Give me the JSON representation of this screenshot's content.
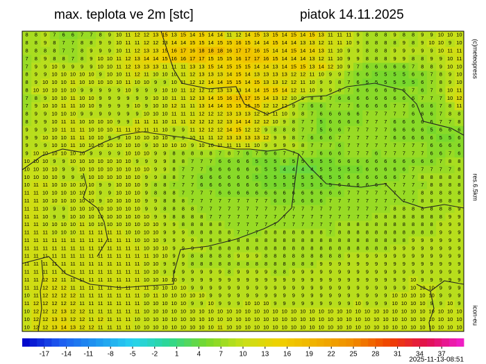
{
  "header": {
    "title": "max. teplota ve 2m [stc]",
    "date": "piatok 14.11.2025"
  },
  "side_labels": {
    "credit": "(c)meteopress",
    "resolution": "res.6.5km",
    "model": "icon-eu"
  },
  "timestamp": "2025-11-13-08:51",
  "grid": [
    [
      8,
      8,
      9,
      7,
      6,
      6,
      7,
      7,
      8,
      9,
      10,
      11,
      12,
      12,
      13,
      15,
      13,
      15,
      14,
      15,
      14,
      14,
      11,
      12,
      14,
      15,
      13,
      15,
      14,
      15,
      14,
      15,
      13,
      11,
      11,
      11,
      9,
      8,
      8,
      8,
      9,
      8,
      8,
      9,
      9,
      10,
      10,
      10
    ],
    [
      8,
      8,
      9,
      8,
      7,
      7,
      8,
      8,
      9,
      9,
      10,
      11,
      11,
      12,
      12,
      13,
      14,
      14,
      15,
      15,
      14,
      15,
      15,
      16,
      15,
      14,
      14,
      15,
      14,
      14,
      13,
      13,
      12,
      11,
      11,
      10,
      9,
      8,
      8,
      8,
      8,
      9,
      8,
      9,
      10,
      10,
      9,
      10
    ],
    [
      8,
      8,
      8,
      8,
      7,
      7,
      8,
      9,
      9,
      9,
      10,
      11,
      12,
      13,
      13,
      15,
      16,
      17,
      16,
      18,
      18,
      18,
      16,
      17,
      17,
      16,
      15,
      14,
      14,
      15,
      14,
      14,
      13,
      11,
      10,
      9,
      9,
      8,
      8,
      8,
      9,
      9,
      9,
      9,
      9,
      10,
      11,
      11
    ],
    [
      7,
      8,
      9,
      8,
      8,
      7,
      8,
      9,
      10,
      10,
      11,
      12,
      13,
      14,
      14,
      15,
      16,
      16,
      17,
      17,
      15,
      15,
      15,
      16,
      17,
      17,
      16,
      15,
      14,
      14,
      14,
      13,
      12,
      11,
      10,
      9,
      9,
      8,
      8,
      8,
      9,
      9,
      8,
      8,
      9,
      9,
      10,
      11
    ],
    [
      7,
      9,
      9,
      10,
      9,
      9,
      9,
      9,
      10,
      10,
      11,
      12,
      13,
      13,
      13,
      11,
      11,
      11,
      13,
      13,
      15,
      14,
      15,
      15,
      15,
      14,
      14,
      13,
      14,
      15,
      15,
      13,
      14,
      12,
      10,
      9,
      7,
      6,
      6,
      6,
      6,
      6,
      7,
      8,
      8,
      9,
      10,
      10
    ],
    [
      8,
      9,
      9,
      10,
      10,
      10,
      10,
      10,
      9,
      10,
      10,
      11,
      12,
      11,
      10,
      10,
      10,
      11,
      12,
      13,
      13,
      13,
      14,
      15,
      14,
      13,
      13,
      13,
      13,
      12,
      12,
      11,
      10,
      9,
      9,
      7,
      6,
      6,
      5,
      5,
      5,
      5,
      6,
      6,
      7,
      8,
      9,
      10
    ],
    [
      8,
      9,
      10,
      10,
      10,
      11,
      10,
      10,
      10,
      10,
      10,
      11,
      10,
      10,
      9,
      9,
      10,
      11,
      12,
      12,
      14,
      14,
      15,
      15,
      14,
      15,
      13,
      13,
      12,
      12,
      11,
      10,
      9,
      9,
      8,
      7,
      6,
      5,
      5,
      5,
      5,
      5,
      5,
      6,
      7,
      8,
      9,
      10
    ],
    [
      8,
      10,
      10,
      10,
      10,
      10,
      9,
      9,
      9,
      9,
      9,
      10,
      9,
      9,
      9,
      10,
      10,
      11,
      12,
      12,
      12,
      13,
      13,
      13,
      14,
      14,
      15,
      15,
      14,
      12,
      11,
      10,
      9,
      9,
      8,
      7,
      6,
      6,
      6,
      6,
      6,
      6,
      7,
      6,
      7,
      8,
      10,
      11
    ],
    [
      7,
      8,
      9,
      10,
      10,
      11,
      10,
      10,
      9,
      9,
      9,
      9,
      9,
      9,
      10,
      10,
      11,
      11,
      12,
      13,
      14,
      15,
      16,
      17,
      17,
      15,
      14,
      13,
      12,
      10,
      9,
      8,
      8,
      7,
      6,
      6,
      6,
      6,
      6,
      6,
      6,
      6,
      6,
      7,
      7,
      7,
      10,
      12
    ],
    [
      7,
      9,
      10,
      10,
      11,
      11,
      10,
      10,
      9,
      9,
      9,
      9,
      10,
      9,
      10,
      10,
      12,
      11,
      11,
      13,
      14,
      14,
      15,
      15,
      15,
      15,
      12,
      12,
      12,
      9,
      7,
      6,
      6,
      7,
      7,
      7,
      6,
      6,
      6,
      6,
      7,
      7,
      6,
      6,
      6,
      7,
      8,
      11
    ],
    [
      8,
      9,
      9,
      10,
      10,
      10,
      9,
      9,
      9,
      9,
      9,
      9,
      9,
      10,
      10,
      10,
      11,
      11,
      11,
      12,
      12,
      12,
      13,
      13,
      13,
      12,
      12,
      11,
      10,
      9,
      8,
      7,
      6,
      6,
      6,
      6,
      6,
      7,
      7,
      7,
      7,
      7,
      6,
      6,
      6,
      7,
      8,
      8
    ],
    [
      8,
      9,
      9,
      10,
      11,
      11,
      10,
      10,
      10,
      10,
      9,
      9,
      11,
      11,
      11,
      10,
      11,
      11,
      12,
      12,
      12,
      12,
      13,
      14,
      14,
      12,
      12,
      10,
      9,
      8,
      7,
      7,
      5,
      6,
      6,
      6,
      6,
      7,
      7,
      7,
      6,
      6,
      6,
      6,
      6,
      7,
      7,
      8
    ],
    [
      9,
      9,
      9,
      10,
      11,
      11,
      11,
      10,
      10,
      10,
      11,
      11,
      12,
      11,
      11,
      10,
      9,
      9,
      11,
      12,
      12,
      12,
      14,
      15,
      12,
      12,
      9,
      8,
      8,
      8,
      7,
      7,
      5,
      6,
      6,
      7,
      7,
      7,
      7,
      7,
      6,
      6,
      6,
      6,
      5,
      6,
      6,
      6
    ],
    [
      9,
      9,
      10,
      10,
      10,
      11,
      11,
      10,
      10,
      9,
      9,
      10,
      10,
      10,
      10,
      10,
      9,
      9,
      10,
      11,
      11,
      12,
      13,
      13,
      13,
      13,
      12,
      9,
      9,
      8,
      7,
      6,
      6,
      6,
      7,
      7,
      7,
      7,
      7,
      7,
      6,
      6,
      6,
      6,
      6,
      5,
      5,
      6
    ],
    [
      9,
      9,
      9,
      10,
      10,
      11,
      10,
      10,
      10,
      10,
      10,
      10,
      10,
      9,
      10,
      10,
      10,
      10,
      9,
      10,
      10,
      11,
      11,
      11,
      11,
      10,
      9,
      9,
      9,
      9,
      8,
      7,
      7,
      7,
      6,
      7,
      7,
      7,
      7,
      7,
      7,
      7,
      7,
      7,
      6,
      6,
      6,
      6
    ],
    [
      9,
      10,
      10,
      10,
      10,
      10,
      10,
      9,
      9,
      9,
      9,
      10,
      10,
      10,
      9,
      9,
      8,
      8,
      8,
      8,
      8,
      7,
      8,
      7,
      6,
      7,
      6,
      6,
      7,
      7,
      7,
      7,
      6,
      6,
      6,
      7,
      7,
      7,
      6,
      7,
      7,
      7,
      7,
      7,
      6,
      6,
      7,
      6
    ],
    [
      10,
      10,
      10,
      9,
      9,
      10,
      10,
      10,
      10,
      10,
      10,
      10,
      9,
      9,
      9,
      9,
      8,
      8,
      7,
      7,
      7,
      6,
      6,
      6,
      6,
      5,
      5,
      5,
      6,
      5,
      5,
      5,
      5,
      5,
      6,
      6,
      6,
      6,
      6,
      6,
      6,
      6,
      6,
      6,
      6,
      7,
      8,
      8
    ],
    [
      10,
      10,
      10,
      10,
      9,
      9,
      10,
      10,
      10,
      10,
      10,
      10,
      10,
      10,
      9,
      9,
      8,
      7,
      7,
      7,
      6,
      6,
      6,
      6,
      6,
      6,
      5,
      5,
      4,
      4,
      4,
      4,
      5,
      5,
      5,
      5,
      5,
      6,
      6,
      6,
      6,
      6,
      7,
      7,
      7,
      7,
      7,
      8
    ],
    [
      10,
      10,
      10,
      10,
      9,
      9,
      9,
      10,
      10,
      10,
      10,
      10,
      10,
      9,
      9,
      8,
      8,
      7,
      7,
      6,
      6,
      6,
      6,
      6,
      6,
      5,
      5,
      5,
      5,
      5,
      5,
      5,
      5,
      5,
      5,
      6,
      6,
      6,
      6,
      6,
      6,
      7,
      7,
      8,
      8,
      8,
      8,
      8
    ],
    [
      10,
      11,
      11,
      10,
      10,
      10,
      10,
      10,
      9,
      9,
      10,
      10,
      10,
      9,
      8,
      8,
      7,
      7,
      7,
      6,
      6,
      6,
      6,
      6,
      6,
      6,
      5,
      5,
      5,
      5,
      5,
      5,
      5,
      5,
      6,
      6,
      6,
      6,
      6,
      7,
      7,
      7,
      7,
      7,
      8,
      8,
      8,
      8
    ],
    [
      11,
      11,
      10,
      10,
      10,
      10,
      10,
      10,
      9,
      9,
      10,
      10,
      10,
      9,
      8,
      8,
      8,
      7,
      7,
      7,
      7,
      6,
      6,
      6,
      6,
      6,
      6,
      6,
      6,
      6,
      6,
      6,
      6,
      6,
      6,
      7,
      7,
      7,
      7,
      7,
      7,
      7,
      7,
      8,
      8,
      8,
      8,
      8
    ],
    [
      11,
      11,
      10,
      10,
      10,
      10,
      10,
      10,
      9,
      10,
      10,
      10,
      10,
      9,
      9,
      8,
      8,
      8,
      7,
      7,
      7,
      7,
      7,
      7,
      7,
      7,
      7,
      6,
      6,
      6,
      6,
      6,
      6,
      7,
      7,
      7,
      7,
      7,
      7,
      7,
      7,
      7,
      7,
      8,
      8,
      8,
      8,
      8
    ],
    [
      11,
      11,
      10,
      9,
      9,
      10,
      10,
      10,
      10,
      10,
      10,
      10,
      10,
      9,
      9,
      8,
      8,
      8,
      8,
      7,
      7,
      7,
      7,
      7,
      7,
      7,
      7,
      7,
      7,
      7,
      7,
      7,
      7,
      7,
      7,
      7,
      7,
      7,
      7,
      7,
      8,
      8,
      8,
      8,
      8,
      8,
      8,
      9
    ],
    [
      11,
      11,
      10,
      9,
      9,
      10,
      10,
      10,
      10,
      10,
      10,
      10,
      10,
      10,
      9,
      9,
      8,
      8,
      8,
      8,
      7,
      7,
      7,
      7,
      7,
      7,
      7,
      7,
      7,
      7,
      7,
      7,
      7,
      7,
      7,
      7,
      7,
      7,
      8,
      8,
      8,
      8,
      8,
      8,
      8,
      8,
      9,
      9
    ],
    [
      11,
      11,
      10,
      10,
      10,
      10,
      11,
      10,
      10,
      10,
      10,
      10,
      10,
      10,
      10,
      9,
      9,
      8,
      8,
      8,
      8,
      8,
      7,
      7,
      7,
      7,
      7,
      7,
      7,
      7,
      7,
      7,
      7,
      7,
      8,
      8,
      8,
      8,
      8,
      8,
      8,
      8,
      8,
      8,
      8,
      9,
      9,
      9
    ],
    [
      11,
      11,
      11,
      10,
      10,
      10,
      11,
      11,
      11,
      11,
      11,
      10,
      10,
      10,
      10,
      9,
      9,
      9,
      8,
      8,
      8,
      8,
      8,
      7,
      7,
      7,
      8,
      8,
      8,
      8,
      8,
      8,
      8,
      7,
      8,
      8,
      8,
      8,
      8,
      8,
      8,
      8,
      8,
      8,
      8,
      9,
      9,
      9
    ],
    [
      11,
      11,
      11,
      11,
      11,
      11,
      11,
      11,
      11,
      11,
      11,
      11,
      10,
      10,
      10,
      9,
      9,
      9,
      9,
      8,
      8,
      8,
      8,
      8,
      8,
      8,
      8,
      8,
      8,
      8,
      8,
      8,
      8,
      8,
      8,
      8,
      8,
      8,
      8,
      8,
      8,
      8,
      9,
      9,
      9,
      9,
      9,
      9
    ],
    [
      11,
      11,
      11,
      11,
      11,
      11,
      11,
      11,
      11,
      11,
      11,
      11,
      11,
      10,
      10,
      10,
      9,
      9,
      9,
      9,
      8,
      8,
      8,
      8,
      8,
      8,
      8,
      8,
      8,
      8,
      8,
      8,
      8,
      8,
      8,
      8,
      8,
      8,
      8,
      8,
      9,
      9,
      9,
      9,
      9,
      9,
      9,
      9
    ],
    [
      11,
      11,
      11,
      11,
      11,
      11,
      11,
      11,
      11,
      11,
      11,
      11,
      11,
      11,
      10,
      10,
      9,
      9,
      8,
      8,
      8,
      8,
      8,
      9,
      9,
      9,
      8,
      8,
      8,
      8,
      8,
      8,
      8,
      8,
      8,
      9,
      9,
      9,
      9,
      9,
      9,
      9,
      9,
      9,
      9,
      9,
      9,
      9
    ],
    [
      11,
      11,
      11,
      11,
      11,
      11,
      11,
      11,
      11,
      11,
      11,
      11,
      11,
      10,
      10,
      9,
      9,
      9,
      8,
      8,
      8,
      8,
      8,
      8,
      8,
      8,
      8,
      8,
      8,
      8,
      8,
      8,
      9,
      9,
      9,
      9,
      9,
      9,
      9,
      9,
      9,
      9,
      9,
      9,
      9,
      9,
      9,
      9
    ],
    [
      11,
      11,
      11,
      11,
      11,
      11,
      11,
      11,
      11,
      11,
      11,
      11,
      11,
      10,
      10,
      9,
      9,
      9,
      9,
      9,
      9,
      9,
      8,
      9,
      9,
      9,
      9,
      8,
      8,
      9,
      9,
      9,
      9,
      9,
      9,
      9,
      9,
      9,
      9,
      9,
      9,
      9,
      9,
      9,
      9,
      9,
      9,
      9
    ],
    [
      11,
      11,
      12,
      12,
      11,
      11,
      11,
      11,
      11,
      11,
      11,
      11,
      11,
      10,
      10,
      10,
      10,
      9,
      9,
      9,
      9,
      9,
      9,
      9,
      9,
      9,
      9,
      9,
      9,
      9,
      9,
      9,
      9,
      9,
      9,
      9,
      9,
      9,
      9,
      9,
      9,
      9,
      10,
      9,
      9,
      9,
      9,
      9
    ],
    [
      11,
      11,
      12,
      12,
      12,
      11,
      11,
      11,
      11,
      11,
      11,
      11,
      11,
      11,
      10,
      10,
      10,
      10,
      9,
      9,
      9,
      9,
      9,
      9,
      9,
      9,
      9,
      9,
      9,
      9,
      9,
      9,
      9,
      9,
      9,
      9,
      9,
      9,
      9,
      9,
      9,
      9,
      10,
      10,
      10,
      9,
      9,
      9
    ],
    [
      10,
      11,
      12,
      12,
      12,
      12,
      11,
      11,
      11,
      11,
      11,
      11,
      11,
      10,
      11,
      10,
      10,
      10,
      10,
      10,
      9,
      9,
      9,
      9,
      9,
      9,
      9,
      9,
      9,
      9,
      9,
      9,
      9,
      9,
      9,
      9,
      9,
      9,
      9,
      9,
      10,
      10,
      10,
      10,
      10,
      9,
      9,
      9
    ],
    [
      11,
      12,
      12,
      12,
      12,
      12,
      11,
      11,
      11,
      11,
      11,
      11,
      11,
      10,
      10,
      10,
      10,
      10,
      9,
      9,
      10,
      9,
      9,
      9,
      10,
      10,
      10,
      9,
      9,
      9,
      9,
      9,
      9,
      9,
      9,
      9,
      10,
      9,
      9,
      9,
      10,
      10,
      10,
      10,
      9,
      9,
      10,
      9
    ],
    [
      10,
      12,
      12,
      12,
      13,
      12,
      12,
      11,
      11,
      11,
      11,
      11,
      11,
      10,
      10,
      10,
      10,
      10,
      10,
      10,
      10,
      10,
      10,
      10,
      10,
      10,
      10,
      10,
      10,
      10,
      10,
      10,
      10,
      10,
      10,
      10,
      10,
      10,
      10,
      10,
      10,
      10,
      10,
      10,
      10,
      10,
      10,
      10
    ],
    [
      10,
      12,
      12,
      13,
      13,
      12,
      12,
      11,
      12,
      11,
      11,
      11,
      10,
      10,
      10,
      10,
      10,
      10,
      10,
      10,
      10,
      10,
      10,
      10,
      10,
      10,
      10,
      10,
      10,
      10,
      10,
      10,
      10,
      10,
      10,
      10,
      10,
      10,
      10,
      10,
      10,
      10,
      10,
      10,
      10,
      10,
      10,
      10
    ],
    [
      10,
      12,
      12,
      13,
      14,
      13,
      12,
      12,
      11,
      11,
      11,
      11,
      10,
      10,
      10,
      10,
      10,
      10,
      10,
      10,
      10,
      11,
      10,
      10,
      10,
      10,
      10,
      10,
      10,
      10,
      10,
      10,
      10,
      10,
      10,
      10,
      10,
      10,
      10,
      10,
      10,
      10,
      10,
      10,
      10,
      10,
      10,
      10
    ]
  ],
  "colorbar": {
    "lim": [
      -20,
      40
    ],
    "ticks": [
      -17,
      -14,
      -11,
      -8,
      -5,
      -2,
      1,
      4,
      7,
      10,
      13,
      16,
      19,
      22,
      25,
      28,
      31,
      34,
      37
    ],
    "colors": [
      "#0000c8",
      "#1e5af0",
      "#1e96f0",
      "#28d2f0",
      "#2cd890",
      "#78d82c",
      "#c8e018",
      "#f0d000",
      "#f0b000",
      "#f08c00",
      "#f04000",
      "#e01050",
      "#f020d0"
    ]
  }
}
